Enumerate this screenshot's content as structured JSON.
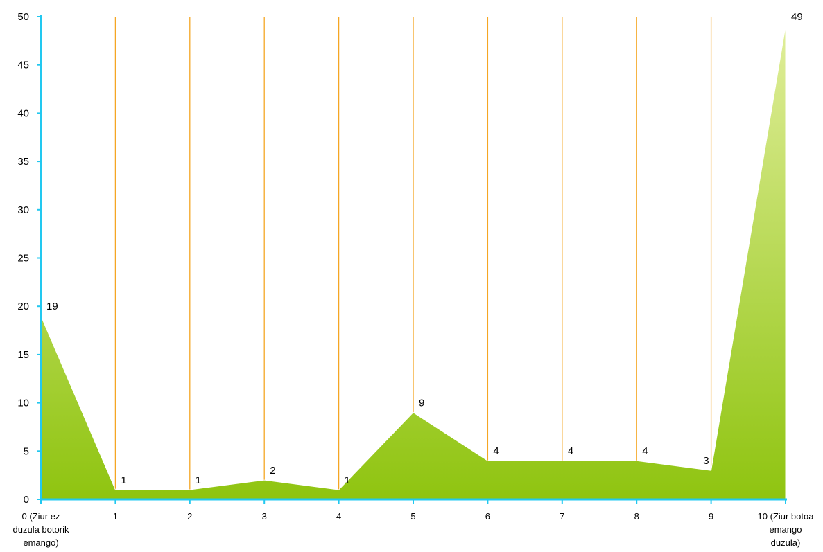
{
  "chart_data": {
    "type": "area",
    "title": "",
    "xlabel": "",
    "ylabel": "",
    "categories": [
      [
        "0 (Ziur ez",
        "duzula botorik",
        "emango)"
      ],
      [
        "1"
      ],
      [
        "2"
      ],
      [
        "3"
      ],
      [
        "4"
      ],
      [
        "5"
      ],
      [
        "6"
      ],
      [
        "7"
      ],
      [
        "8"
      ],
      [
        "9"
      ],
      [
        "10 (Ziur botoa",
        "emango",
        "duzula)"
      ]
    ],
    "values": [
      19,
      1,
      1,
      2,
      1,
      9,
      4,
      4,
      4,
      3,
      49
    ],
    "ylim": [
      0,
      50
    ],
    "yticks": [
      0,
      5,
      10,
      15,
      20,
      25,
      30,
      35,
      40,
      45,
      50
    ],
    "grid": "vertical",
    "legend": "none",
    "data_labels": true
  },
  "colors": {
    "axis": "#22c8f0",
    "gridline": "#f5a623",
    "fill_top": "#e0ee9a",
    "fill_bottom": "#8fc410",
    "outline": "#ffffff"
  }
}
